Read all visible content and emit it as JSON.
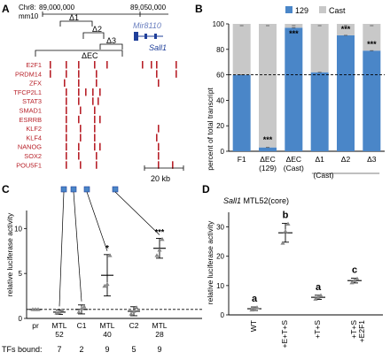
{
  "panels": {
    "a": "A",
    "b": "B",
    "c": "C",
    "d": "D"
  },
  "panel_a": {
    "chr_label": "Chr8:",
    "coord_start": "89,000,000",
    "coord_end": "89,050,000",
    "assembly": "mm10",
    "deletions": [
      "Δ1",
      "Δ2",
      "Δ3",
      "ΔEC"
    ],
    "genes": [
      "Mir8110",
      "Sall1"
    ],
    "tfs": [
      "E2F1",
      "PRDM14",
      "ZFX",
      "TFCP2L1",
      "STAT3",
      "SMAD1",
      "ESRRB",
      "KLF2",
      "KLF4",
      "NANOG",
      "SOX2",
      "POU5F1"
    ],
    "scale_label": "20 kb"
  },
  "panel_b": {
    "legend": [
      "129",
      "Cast"
    ],
    "ylabel": "percent of total transcript",
    "yticks": [
      "0",
      "20",
      "40",
      "60",
      "80",
      "100"
    ],
    "xticks_line1": [
      "F1",
      "ΔEC",
      "ΔEC",
      "Δ1",
      "Δ2",
      "Δ3"
    ],
    "xticks_line2": [
      "",
      "(129)",
      "(Cast)",
      "",
      "",
      ""
    ],
    "group_label": "(Cast)",
    "sig": [
      "***",
      "***",
      "***",
      "***"
    ]
  },
  "panel_c": {
    "ylabel": "relative luciferase activity",
    "yticks": [
      "0",
      "5",
      "10"
    ],
    "xticks_line1": [
      "pr",
      "MTL",
      "C1",
      "MTL",
      "C2",
      "MTL"
    ],
    "xticks_line2": [
      "",
      "52",
      "",
      "40",
      "",
      "28"
    ],
    "tfs_label": "TFs bound:",
    "tfs_bound": [
      "7",
      "2",
      "9",
      "5",
      "9"
    ],
    "sig": [
      "*",
      "***"
    ]
  },
  "panel_d": {
    "title_gene": "Sall1",
    "title_rest": " MTL52(core)",
    "ylabel": "relative luciferase activity",
    "yticks": [
      "0",
      "10",
      "20",
      "30"
    ],
    "xticks": [
      "WT",
      "+E+T+S",
      "+T+S",
      "+T+S\n+E2F1"
    ],
    "xticks_a": [
      "WT",
      "+E+T+S",
      "+T+S",
      "+T+S"
    ],
    "xticks_b": [
      "",
      "",
      "",
      "+E2F1"
    ],
    "letters": [
      "a",
      "b",
      "a",
      "c"
    ]
  },
  "colors": {
    "blue": "#4a86c8",
    "gray": "#c8c8c8",
    "red": "#b8222a",
    "navy": "#1f3f9a",
    "mir": "#6a7fbf"
  },
  "chart_data": [
    {
      "type": "bar",
      "title": "",
      "categories": [
        "F1",
        "ΔEC (129)",
        "ΔEC (Cast)",
        "Δ1",
        "Δ2",
        "Δ3"
      ],
      "series": [
        {
          "name": "129",
          "values": [
            60,
            3,
            97,
            62,
            91,
            79
          ]
        },
        {
          "name": "Cast",
          "values": [
            40,
            97,
            3,
            38,
            9,
            21
          ]
        }
      ],
      "ylabel": "percent of total transcript",
      "ylim": [
        0,
        100
      ],
      "stacked": true,
      "reference_line": 60
    },
    {
      "type": "scatter",
      "title": "",
      "categories": [
        "pr",
        "MTL 52",
        "C1",
        "MTL 40",
        "C2",
        "MTL 28"
      ],
      "means": [
        1.0,
        0.7,
        1.0,
        4.8,
        0.8,
        7.8
      ],
      "sd": [
        0.05,
        0.25,
        0.5,
        2.3,
        0.5,
        1.1
      ],
      "points": [
        [
          1,
          1,
          1
        ],
        [
          0.6,
          0.7,
          0.9
        ],
        [
          0.7,
          1.1,
          1.3
        ],
        [
          3.6,
          3.8,
          7.0
        ],
        [
          0.5,
          0.8,
          1.2
        ],
        [
          7.0,
          7.6,
          8.8
        ]
      ],
      "ylabel": "relative luciferase activity",
      "ylim": [
        0,
        12
      ],
      "reference_line": 1
    },
    {
      "type": "scatter",
      "title": "",
      "categories": [
        "WT",
        "+E+T+S",
        "+T+S",
        "+T+S +E2F1"
      ],
      "means": [
        2.1,
        28,
        6,
        11.7
      ],
      "sd": [
        0.6,
        3.2,
        0.7,
        0.8
      ],
      "points": [
        [
          1.7,
          2.0,
          2.5
        ],
        [
          24.5,
          28.5,
          31
        ],
        [
          5.4,
          6.0,
          6.6
        ],
        [
          11.0,
          11.8,
          12.3
        ]
      ],
      "ylabel": "relative luciferase activity",
      "ylim": [
        0,
        35
      ]
    }
  ]
}
